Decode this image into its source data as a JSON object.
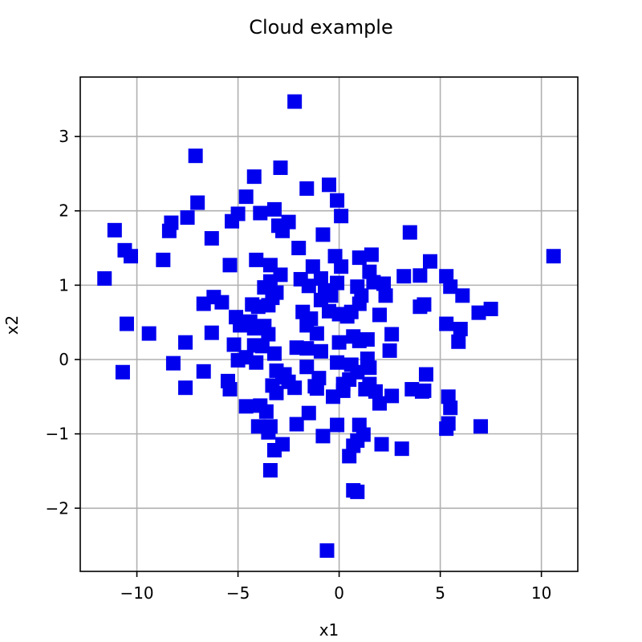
{
  "chart_data": {
    "type": "scatter",
    "title": "Cloud example",
    "xlabel": "x1",
    "ylabel": "x2",
    "xlim": [
      -12.8,
      11.8
    ],
    "ylim": [
      -2.85,
      3.8
    ],
    "grid": true,
    "marker": "square",
    "x_ticks": [
      -10,
      -5,
      0,
      5,
      10
    ],
    "y_ticks": [
      -2,
      -1,
      0,
      1,
      2,
      3
    ],
    "x_tick_labels": [
      "−10",
      "−5",
      "0",
      "5",
      "10"
    ],
    "y_tick_labels": [
      "−2",
      "−1",
      "0",
      "1",
      "2",
      "3"
    ],
    "colors": {
      "marker": "#0000ee",
      "grid": "#b0b0b0",
      "axes": "#000000"
    },
    "series": [
      {
        "points": [
          [
            -2.2,
            3.47
          ],
          [
            -7.1,
            2.74
          ],
          [
            -2.9,
            2.58
          ],
          [
            -4.2,
            2.46
          ],
          [
            -0.5,
            2.35
          ],
          [
            -1.6,
            2.3
          ],
          [
            -4.6,
            2.19
          ],
          [
            -0.1,
            2.14
          ],
          [
            -7.0,
            2.11
          ],
          [
            -3.2,
            2.02
          ],
          [
            -3.9,
            1.97
          ],
          [
            -5.0,
            1.96
          ],
          [
            0.1,
            1.93
          ],
          [
            -7.5,
            1.91
          ],
          [
            -2.5,
            1.85
          ],
          [
            -5.3,
            1.86
          ],
          [
            -8.3,
            1.84
          ],
          [
            -3.0,
            1.8
          ],
          [
            -2.8,
            1.73
          ],
          [
            -11.1,
            1.74
          ],
          [
            -8.4,
            1.73
          ],
          [
            -0.8,
            1.68
          ],
          [
            3.5,
            1.71
          ],
          [
            -6.3,
            1.63
          ],
          [
            -2.0,
            1.5
          ],
          [
            -10.6,
            1.47
          ],
          [
            -10.3,
            1.39
          ],
          [
            1.6,
            1.41
          ],
          [
            10.6,
            1.39
          ],
          [
            -8.7,
            1.34
          ],
          [
            -4.1,
            1.34
          ],
          [
            1.0,
            1.37
          ],
          [
            -0.2,
            1.39
          ],
          [
            4.5,
            1.32
          ],
          [
            -5.4,
            1.27
          ],
          [
            -3.4,
            1.27
          ],
          [
            -1.3,
            1.25
          ],
          [
            0.1,
            1.25
          ],
          [
            1.5,
            1.18
          ],
          [
            -2.9,
            1.14
          ],
          [
            -1.9,
            1.08
          ],
          [
            -0.9,
            1.09
          ],
          [
            -11.6,
            1.09
          ],
          [
            3.2,
            1.12
          ],
          [
            4.0,
            1.13
          ],
          [
            5.3,
            1.12
          ],
          [
            -3.4,
            1.05
          ],
          [
            1.7,
            1.04
          ],
          [
            -0.1,
            1.03
          ],
          [
            2.2,
            1.02
          ],
          [
            -3.7,
            0.97
          ],
          [
            -1.5,
            0.99
          ],
          [
            5.5,
            0.98
          ],
          [
            0.9,
            0.98
          ],
          [
            -0.7,
            0.93
          ],
          [
            -3.1,
            0.9
          ],
          [
            2.3,
            0.86
          ],
          [
            1.1,
            0.86
          ],
          [
            -0.4,
            0.86
          ],
          [
            6.1,
            0.86
          ],
          [
            -6.2,
            0.84
          ],
          [
            -3.3,
            0.83
          ],
          [
            -0.9,
            0.8
          ],
          [
            -5.8,
            0.77
          ],
          [
            -6.7,
            0.75
          ],
          [
            -4.3,
            0.74
          ],
          [
            1.0,
            0.75
          ],
          [
            -3.5,
            0.73
          ],
          [
            -4.0,
            0.71
          ],
          [
            4.2,
            0.74
          ],
          [
            4.0,
            0.71
          ],
          [
            7.5,
            0.68
          ],
          [
            6.9,
            0.63
          ],
          [
            -0.5,
            0.65
          ],
          [
            -1.8,
            0.64
          ],
          [
            0.6,
            0.64
          ],
          [
            0.4,
            0.58
          ],
          [
            -5.1,
            0.57
          ],
          [
            2.0,
            0.6
          ],
          [
            0.0,
            0.61
          ],
          [
            -4.4,
            0.51
          ],
          [
            -1.4,
            0.55
          ],
          [
            -3.7,
            0.45
          ],
          [
            -10.5,
            0.48
          ],
          [
            -4.9,
            0.46
          ],
          [
            5.3,
            0.48
          ],
          [
            -1.6,
            0.46
          ],
          [
            -4.2,
            0.42
          ],
          [
            6.0,
            0.41
          ],
          [
            -9.4,
            0.35
          ],
          [
            -6.3,
            0.36
          ],
          [
            -1.1,
            0.35
          ],
          [
            -3.5,
            0.34
          ],
          [
            2.6,
            0.34
          ],
          [
            0.7,
            0.31
          ],
          [
            1.4,
            0.27
          ],
          [
            -7.6,
            0.23
          ],
          [
            0.0,
            0.23
          ],
          [
            5.9,
            0.24
          ],
          [
            1.0,
            0.25
          ],
          [
            -5.2,
            0.2
          ],
          [
            -3.8,
            0.18
          ],
          [
            -4.2,
            0.19
          ],
          [
            -2.1,
            0.16
          ],
          [
            -1.6,
            0.15
          ],
          [
            -0.9,
            0.11
          ],
          [
            2.5,
            0.12
          ],
          [
            -3.2,
            0.08
          ],
          [
            -4.6,
            0.03
          ],
          [
            -5.0,
            -0.01
          ],
          [
            -4.1,
            -0.04
          ],
          [
            -0.1,
            -0.04
          ],
          [
            1.4,
            0.01
          ],
          [
            -8.2,
            -0.05
          ],
          [
            0.6,
            -0.07
          ],
          [
            1.5,
            -0.11
          ],
          [
            -1.6,
            -0.1
          ],
          [
            -3.1,
            -0.15
          ],
          [
            -10.7,
            -0.17
          ],
          [
            -6.7,
            -0.16
          ],
          [
            0.9,
            -0.17
          ],
          [
            4.3,
            -0.2
          ],
          [
            -2.8,
            -0.24
          ],
          [
            -2.7,
            -0.2
          ],
          [
            -1.0,
            -0.25
          ],
          [
            0.5,
            -0.27
          ],
          [
            -5.5,
            -0.29
          ],
          [
            -3.3,
            -0.35
          ],
          [
            -2.5,
            -0.3
          ],
          [
            -1.2,
            -0.36
          ],
          [
            0.2,
            -0.33
          ],
          [
            1.5,
            -0.33
          ],
          [
            -7.6,
            -0.38
          ],
          [
            -5.4,
            -0.4
          ],
          [
            -2.2,
            -0.38
          ],
          [
            -1.1,
            -0.39
          ],
          [
            0.2,
            -0.42
          ],
          [
            1.3,
            -0.4
          ],
          [
            1.8,
            -0.43
          ],
          [
            3.6,
            -0.4
          ],
          [
            4.2,
            -0.42
          ],
          [
            4.1,
            -0.43
          ],
          [
            -3.1,
            -0.45
          ],
          [
            2.6,
            -0.49
          ],
          [
            5.4,
            -0.5
          ],
          [
            -4.6,
            -0.63
          ],
          [
            -3.9,
            -0.62
          ],
          [
            -3.6,
            -0.7
          ],
          [
            -0.3,
            -0.5
          ],
          [
            2.0,
            -0.59
          ],
          [
            5.5,
            -0.65
          ],
          [
            -1.5,
            -0.72
          ],
          [
            1.0,
            -0.88
          ],
          [
            -0.1,
            -0.88
          ],
          [
            -2.1,
            -0.87
          ],
          [
            5.4,
            -0.86
          ],
          [
            7.0,
            -0.9
          ],
          [
            -4.0,
            -0.9
          ],
          [
            -3.4,
            -0.9
          ],
          [
            5.3,
            -0.93
          ],
          [
            -3.5,
            -0.98
          ],
          [
            1.2,
            -1.01
          ],
          [
            -0.8,
            -1.03
          ],
          [
            0.9,
            -1.09
          ],
          [
            2.1,
            -1.14
          ],
          [
            -2.8,
            -1.14
          ],
          [
            0.7,
            -1.16
          ],
          [
            3.1,
            -1.2
          ],
          [
            -3.2,
            -1.22
          ],
          [
            0.5,
            -1.3
          ],
          [
            -3.4,
            -1.49
          ],
          [
            0.7,
            -1.76
          ],
          [
            0.9,
            -1.78
          ],
          [
            -0.6,
            -2.57
          ]
        ]
      }
    ]
  }
}
